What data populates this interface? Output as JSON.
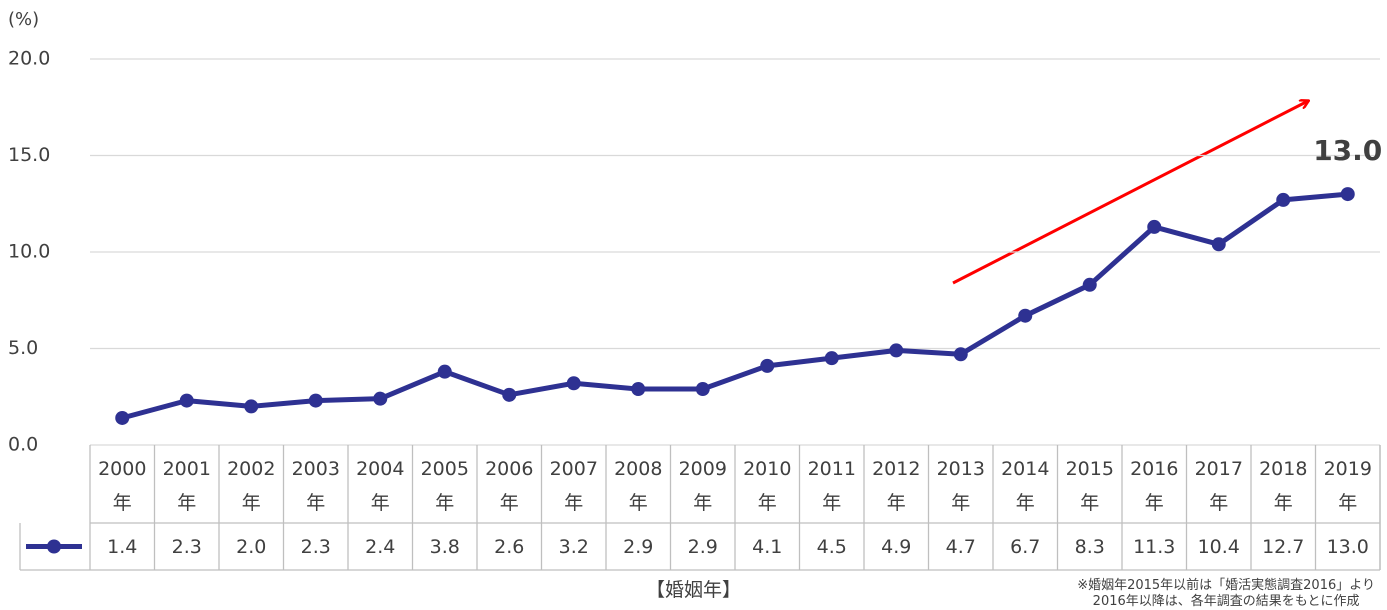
{
  "chart_data": {
    "type": "line",
    "y_unit_label": "(%)",
    "x_label": "【婚姻年】",
    "notes": [
      "※婚姻年2015年以前は「婚活実態調査2016」より",
      "2016年以降は、各年調査の結果をもとに作成"
    ],
    "categories": [
      "2000年",
      "2001年",
      "2002年",
      "2003年",
      "2004年",
      "2005年",
      "2006年",
      "2007年",
      "2008年",
      "2009年",
      "2010年",
      "2011年",
      "2012年",
      "2013年",
      "2014年",
      "2015年",
      "2016年",
      "2017年",
      "2018年",
      "2019年"
    ],
    "series": [
      {
        "color": "#2e3192",
        "values": [
          1.4,
          2.3,
          2.0,
          2.3,
          2.4,
          3.8,
          2.6,
          3.2,
          2.9,
          2.9,
          4.1,
          4.5,
          4.9,
          4.7,
          6.7,
          8.3,
          11.3,
          10.4,
          12.7,
          13.0
        ],
        "value_labels": [
          "1.4",
          "2.3",
          "2.0",
          "2.3",
          "2.4",
          "3.8",
          "2.6",
          "3.2",
          "2.9",
          "2.9",
          "4.1",
          "4.5",
          "4.9",
          "4.7",
          "6.7",
          "8.3",
          "11.3",
          "10.4",
          "12.7",
          "13.0"
        ]
      }
    ],
    "ylim": [
      0,
      20
    ],
    "yticks": [
      {
        "value": 0,
        "label": "0.0"
      },
      {
        "value": 5,
        "label": "5.0"
      },
      {
        "value": 10,
        "label": "10.0"
      },
      {
        "value": 15,
        "label": "15.0"
      },
      {
        "value": 20,
        "label": "20.0"
      }
    ],
    "grid": true,
    "highlight_index": 19
  }
}
